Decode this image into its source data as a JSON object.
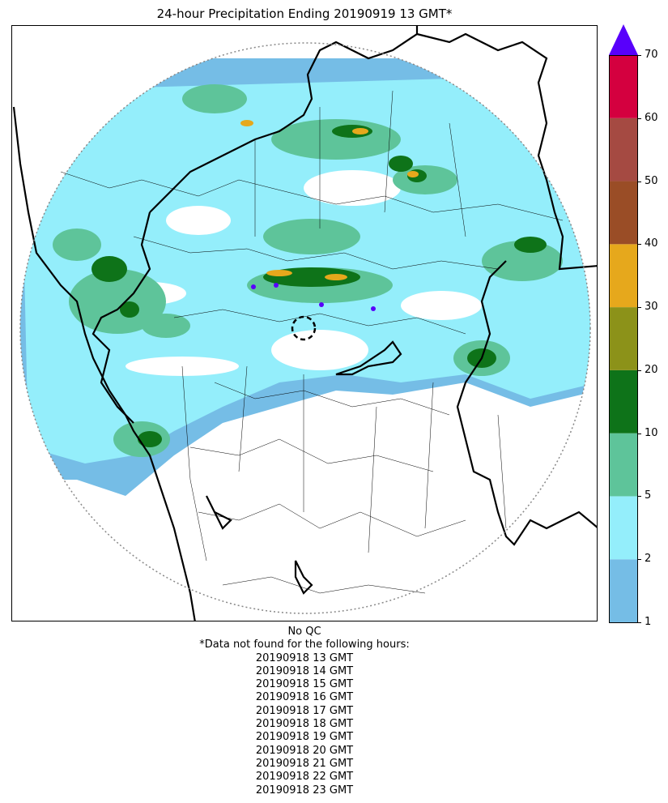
{
  "title": "24-hour Precipitation Ending 20190919 13 GMT*",
  "colorbar": {
    "ticks": [
      {
        "value": 1,
        "label": "1"
      },
      {
        "value": 2,
        "label": "2"
      },
      {
        "value": 5,
        "label": "5"
      },
      {
        "value": 10,
        "label": "10"
      },
      {
        "value": 20,
        "label": "20"
      },
      {
        "value": 30,
        "label": "30"
      },
      {
        "value": 40,
        "label": "40"
      },
      {
        "value": 50,
        "label": "50"
      },
      {
        "value": 60,
        "label": "60"
      },
      {
        "value": 70,
        "label": "70"
      }
    ],
    "colors": [
      "#75bde6",
      "#94eefb",
      "#5ec49a",
      "#0e7319",
      "#8c9219",
      "#e6a81c",
      "#9a4d26",
      "#a54a42",
      "#d4003f"
    ],
    "over_color": "#5800fb",
    "extend": "max"
  },
  "footer": {
    "qc": "No QC",
    "note": "*Data not found for the following hours:",
    "missing_hours": [
      "20190918 13 GMT",
      "20190918 14 GMT",
      "20190918 15 GMT",
      "20190918 16 GMT",
      "20190918 17 GMT",
      "20190918 18 GMT",
      "20190918 19 GMT",
      "20190918 20 GMT",
      "20190918 21 GMT",
      "20190918 22 GMT",
      "20190918 23 GMT"
    ]
  },
  "map": {
    "range_ring_color": "#888888",
    "border_color": "#000000"
  }
}
